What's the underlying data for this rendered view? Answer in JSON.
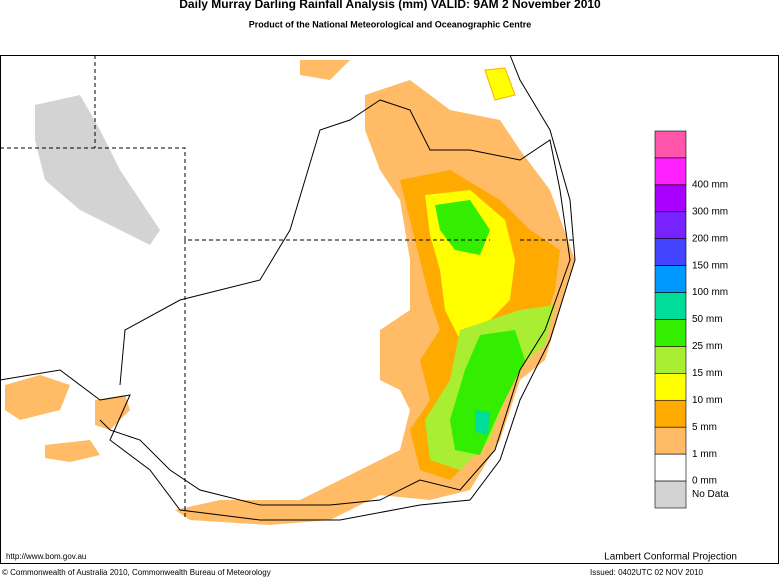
{
  "header": {
    "title": "Daily Murray Darling Rainfall Analysis (mm)  VALID: 9AM  2 November 2010",
    "subtitle": "Product of the National Meteorological and Oceanographic Centre"
  },
  "legend": {
    "colors": [
      "#ff55aa",
      "#ff22ff",
      "#aa00ff",
      "#7722ff",
      "#4444ff",
      "#0099ff",
      "#00dd99",
      "#33ee00",
      "#aaee33",
      "#ffff00",
      "#ffaa00",
      "#ffbb66",
      "#ffffff",
      "#d3d3d3"
    ],
    "labels": [
      "400 mm",
      "300 mm",
      "200 mm",
      "150 mm",
      "100 mm",
      "50 mm",
      "25 mm",
      "15 mm",
      "10 mm",
      "5 mm",
      "1 mm",
      "0 mm"
    ],
    "nodata": "No Data"
  },
  "footer": {
    "url": "http://www.bom.gov.au",
    "projection": "Lambert Conformal Projection",
    "copyright": "© Commonwealth of Australia 2010, Commonwealth Bureau of Meteorology",
    "issued": "Issued: 0402UTC 02 NOV 2010"
  }
}
